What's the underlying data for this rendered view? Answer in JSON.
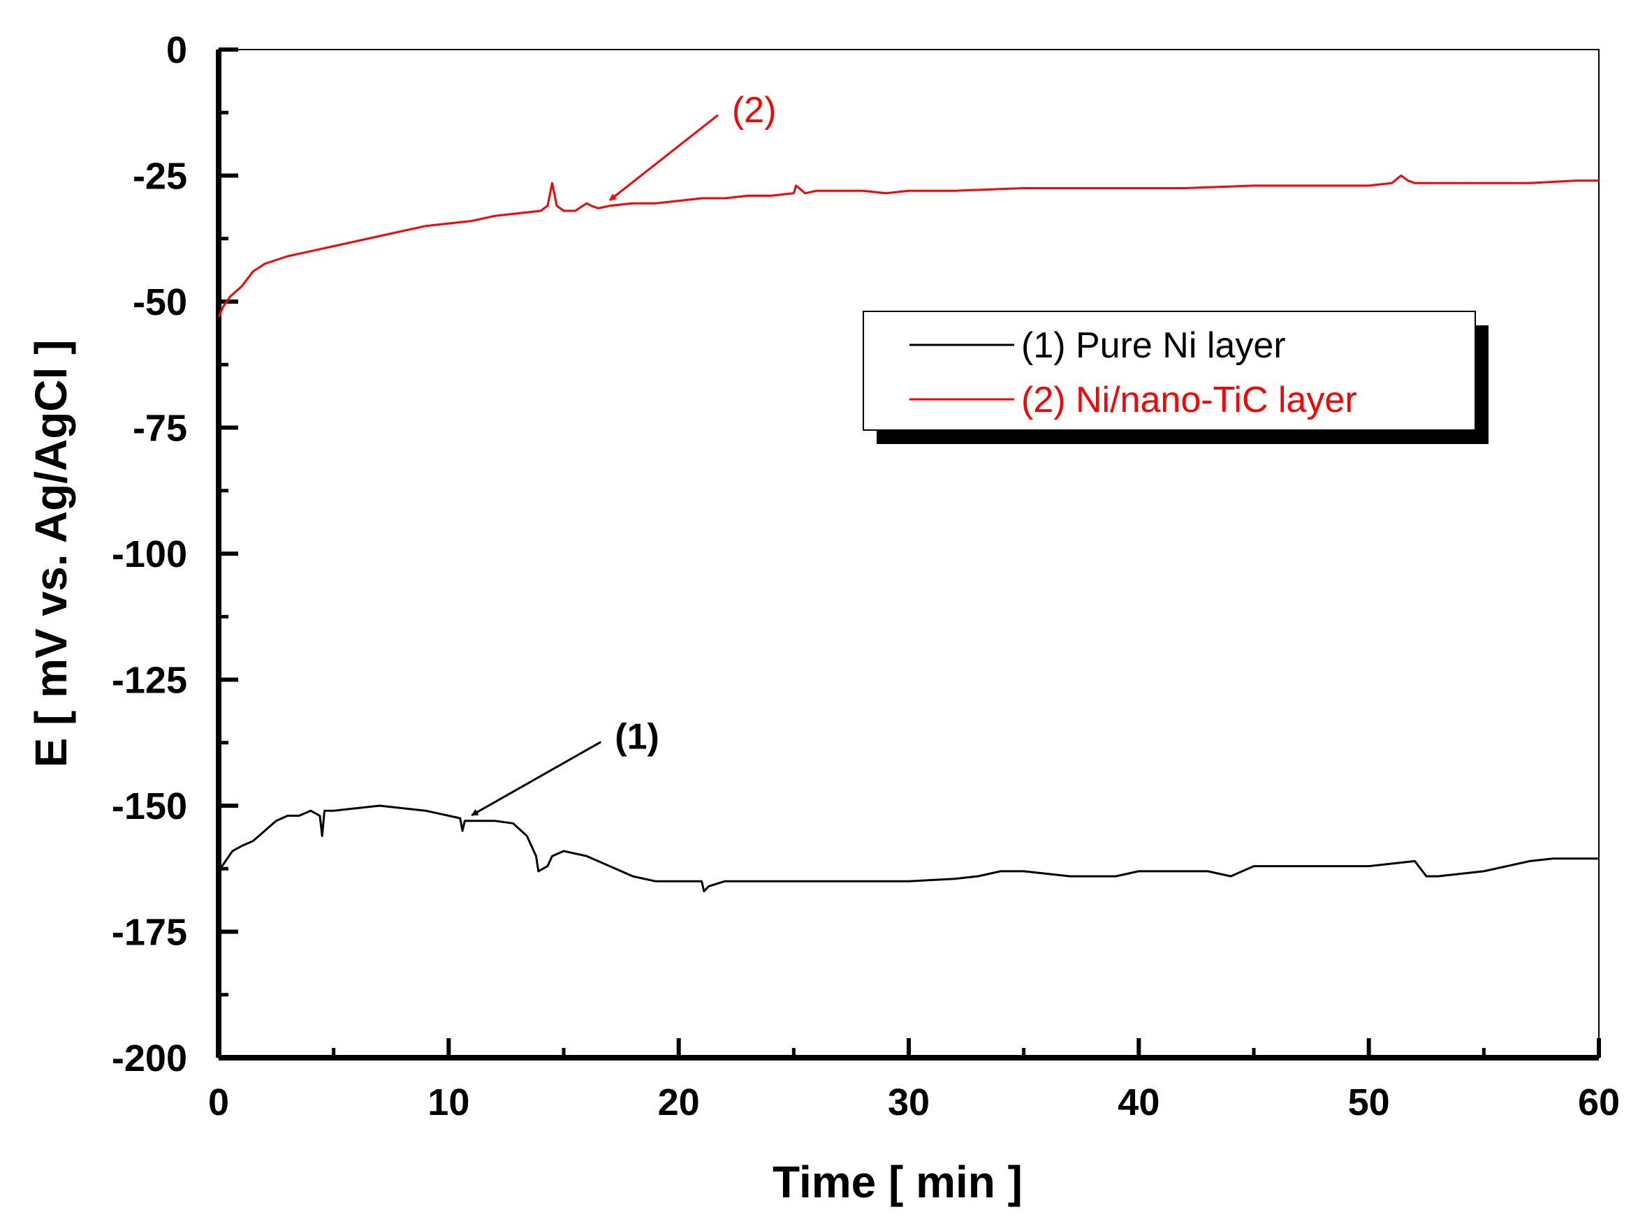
{
  "chart_data": {
    "type": "line",
    "title": "",
    "xlabel": "Time [ min ]",
    "ylabel": "E [ mV vs. Ag/AgCl ]",
    "xlim": [
      0,
      60
    ],
    "ylim": [
      -200,
      0
    ],
    "xticks": [
      0,
      10,
      20,
      30,
      40,
      50,
      60
    ],
    "yticks": [
      0,
      -25,
      -50,
      -75,
      -100,
      -125,
      -150,
      -175,
      -200
    ],
    "grid": false,
    "legend_position": "upper-right-center",
    "series": [
      {
        "name": "(1) Pure Ni layer",
        "color": "#000000",
        "x": [
          0,
          0.3,
          0.6,
          1.0,
          1.5,
          2.0,
          2.5,
          3.0,
          3.5,
          4.0,
          4.4,
          4.5,
          4.6,
          5.0,
          6.0,
          7.0,
          8.0,
          9.0,
          10.0,
          10.5,
          10.6,
          10.7,
          11.0,
          12.0,
          12.8,
          13.4,
          13.8,
          13.9,
          14.3,
          14.5,
          15.0,
          16.0,
          17.0,
          18.0,
          19.0,
          20.0,
          21.0,
          21.1,
          21.3,
          22.0,
          24.0,
          26.0,
          28.0,
          29.5,
          30.0,
          32.0,
          33.0,
          34.0,
          35.0,
          36.0,
          37.0,
          38.0,
          39.0,
          40.0,
          41.0,
          42.0,
          43.0,
          44.0,
          45.0,
          46.0,
          48.0,
          50.0,
          51.0,
          52.0,
          52.5,
          53.0,
          54.0,
          55.0,
          56.0,
          57.0,
          58.0,
          59.0,
          60.0
        ],
        "values": [
          -163,
          -161,
          -159,
          -158,
          -157,
          -155,
          -153,
          -152,
          -152,
          -151,
          -152,
          -156,
          -151,
          -151,
          -150.5,
          -150,
          -150.5,
          -151,
          -152,
          -152.5,
          -155,
          -153,
          -153,
          -153,
          -153.5,
          -156,
          -160,
          -163,
          -162,
          -160,
          -159,
          -160,
          -162,
          -164,
          -165,
          -165,
          -165,
          -167,
          -166,
          -165,
          -165,
          -165,
          -165,
          -165,
          -165,
          -164.5,
          -164,
          -163,
          -163,
          -163.5,
          -164,
          -164,
          -164,
          -163,
          -163,
          -163,
          -163,
          -164,
          -162,
          -162,
          -162,
          -162,
          -161.5,
          -161,
          -164,
          -164,
          -163.5,
          -163,
          -162,
          -161,
          -160.5,
          -160.5,
          -160.5
        ]
      },
      {
        "name": "(2) Ni/nano-TiC layer",
        "color": "#ff0000",
        "x": [
          0,
          0.2,
          0.5,
          1.0,
          1.5,
          2.0,
          3.0,
          4.0,
          5.0,
          6.0,
          7.0,
          8.0,
          9.0,
          10.0,
          11.0,
          12.0,
          13.0,
          14.0,
          14.3,
          14.5,
          14.7,
          15.0,
          15.5,
          16.0,
          16.2,
          16.5,
          17.0,
          18.0,
          19.0,
          20.0,
          21.0,
          22.0,
          23.0,
          24.0,
          25.0,
          25.1,
          25.5,
          26.0,
          27.0,
          28.0,
          29.0,
          30.0,
          32.0,
          35.0,
          38.0,
          40.0,
          42.0,
          45.0,
          48.0,
          50.0,
          51.0,
          51.4,
          51.7,
          52.0,
          53.0,
          55.0,
          57.0,
          59.0,
          60.0
        ],
        "values": [
          -53,
          -51,
          -49,
          -47,
          -44,
          -42.5,
          -41,
          -40,
          -39,
          -38,
          -37,
          -36,
          -35,
          -34.5,
          -34,
          -33,
          -32.5,
          -32,
          -31,
          -26.5,
          -31,
          -32,
          -32,
          -30.5,
          -31,
          -31.5,
          -31,
          -30.5,
          -30.5,
          -30,
          -29.5,
          -29.5,
          -29,
          -29,
          -28.5,
          -27,
          -28.5,
          -28,
          -28,
          -28,
          -28.5,
          -28,
          -28,
          -27.5,
          -27.5,
          -27.5,
          -27.5,
          -27,
          -27,
          -27,
          -26.5,
          -25,
          -26,
          -26.5,
          -26.5,
          -26.5,
          -26.5,
          -26,
          -26
        ]
      }
    ],
    "annotations": [
      {
        "text": "(1)",
        "color": "#000000",
        "x": 11,
        "y": -153
      },
      {
        "text": "(2)",
        "color": "#ff0000",
        "x": 17,
        "y": -31
      }
    ]
  }
}
